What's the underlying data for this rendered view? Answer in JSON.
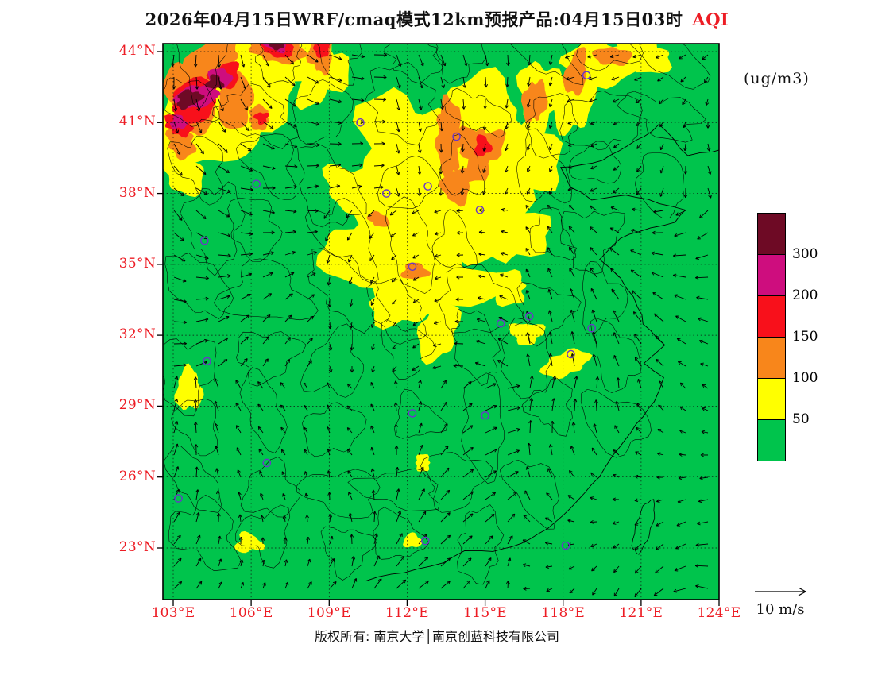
{
  "title": {
    "main": "2026年04月15日WRF/cmaq模式12km预报产品:04月15日03时",
    "variable": "AQI"
  },
  "units_label": "(ug/m3)",
  "footer": "版权所有: 南京大学│南京创蓝科技有限公司",
  "wind_legend": {
    "label": "10 m/s",
    "speed_ms": 10
  },
  "colors": {
    "label_red": "#ed1c24",
    "map_green": "#00c44c",
    "station_purple": "#6a35c9",
    "frame_black": "#000000"
  },
  "chart_data": {
    "type": "heatmap",
    "title": "2026年04月15日WRF/cmaq模式12km预报产品:04月15日03时 AQI",
    "variable": "AQI",
    "units": "ug/m3",
    "model": "WRF/cmaq 12km",
    "valid_time": "04月15日03时",
    "lon_range": [
      103,
      124
    ],
    "lat_range": [
      23,
      44
    ],
    "lon_tick_values": [
      103,
      106,
      109,
      112,
      115,
      118,
      121,
      124
    ],
    "lon_tick_labels": [
      "103°E",
      "106°E",
      "109°E",
      "112°E",
      "115°E",
      "118°E",
      "121°E",
      "124°E"
    ],
    "lat_tick_values": [
      44,
      41,
      38,
      35,
      32,
      29,
      26,
      23
    ],
    "lat_tick_labels": [
      "44°N",
      "41°N",
      "38°N",
      "35°N",
      "32°N",
      "29°N",
      "26°N",
      "23°N"
    ],
    "colorbar": {
      "segments_top_to_bottom": [
        "#6e0a25",
        "#ce0d7e",
        "#f8101b",
        "#f8861b",
        "#ffff00",
        "#00c44c"
      ],
      "boundary_labels_top_to_bottom": [
        "300",
        "200",
        "150",
        "100",
        "50"
      ],
      "background_level": "0-50 (green)"
    },
    "level_colors": {
      "1": "#ffff00",
      "2": "#f8861b",
      "3": "#f8101b",
      "4": "#ce0d7e",
      "5": "#6e0a25"
    },
    "aqi_regions": [
      [
        105.3,
        42.3,
        2.6,
        1.9,
        -25,
        1
      ],
      [
        104.2,
        40.6,
        1.9,
        1.5,
        0,
        1
      ],
      [
        107.0,
        44.0,
        1.7,
        1.0,
        0,
        1
      ],
      [
        108.7,
        43.2,
        0.9,
        1.5,
        10,
        1
      ],
      [
        103.4,
        38.9,
        0.8,
        0.9,
        0,
        1
      ],
      [
        112.0,
        39.9,
        2.0,
        2.3,
        0,
        1
      ],
      [
        114.6,
        40.9,
        1.7,
        1.8,
        -20,
        1
      ],
      [
        115.0,
        38.6,
        2.0,
        1.9,
        0,
        1
      ],
      [
        112.5,
        36.9,
        2.3,
        1.9,
        0,
        1
      ],
      [
        110.6,
        35.5,
        1.9,
        1.4,
        15,
        1
      ],
      [
        109.9,
        38.3,
        1.1,
        0.9,
        0,
        1
      ],
      [
        113.0,
        34.3,
        2.3,
        1.4,
        0,
        1
      ],
      [
        115.5,
        36.2,
        1.6,
        1.4,
        0,
        1
      ],
      [
        111.8,
        33.4,
        1.3,
        1.0,
        0,
        1
      ],
      [
        113.2,
        32.2,
        0.8,
        1.2,
        10,
        1
      ],
      [
        115.9,
        34.0,
        0.8,
        0.6,
        0,
        1
      ],
      [
        116.4,
        39.6,
        1.3,
        1.9,
        0,
        1
      ],
      [
        117.1,
        42.2,
        0.8,
        1.4,
        0,
        1
      ],
      [
        118.4,
        42.0,
        0.7,
        1.6,
        0,
        1
      ],
      [
        119.4,
        43.5,
        1.4,
        0.9,
        -15,
        1
      ],
      [
        121.1,
        43.9,
        1.1,
        0.7,
        0,
        1
      ],
      [
        116.6,
        32.1,
        0.65,
        0.45,
        0,
        1
      ],
      [
        118.1,
        30.8,
        0.85,
        0.55,
        -10,
        1
      ],
      [
        103.6,
        29.7,
        0.5,
        0.9,
        0,
        1
      ],
      [
        112.6,
        26.6,
        0.35,
        0.3,
        0,
        1
      ],
      [
        105.9,
        23.2,
        0.5,
        0.4,
        0,
        1
      ],
      [
        112.2,
        23.3,
        0.35,
        0.3,
        0,
        1
      ],
      [
        104.3,
        43.4,
        1.5,
        0.8,
        -28,
        2
      ],
      [
        103.6,
        42.0,
        0.9,
        1.3,
        -15,
        2
      ],
      [
        105.4,
        41.9,
        0.7,
        1.1,
        -20,
        2
      ],
      [
        106.3,
        41.2,
        0.45,
        0.45,
        0,
        2
      ],
      [
        107.0,
        44.1,
        1.0,
        0.6,
        0,
        2
      ],
      [
        108.7,
        43.9,
        0.45,
        0.8,
        8,
        2
      ],
      [
        113.6,
        40.4,
        0.55,
        1.4,
        -8,
        2
      ],
      [
        114.8,
        39.8,
        0.8,
        1.1,
        10,
        2
      ],
      [
        113.9,
        38.3,
        0.55,
        0.75,
        0,
        2
      ],
      [
        116.9,
        41.9,
        0.4,
        1.0,
        0,
        2
      ],
      [
        118.5,
        43.1,
        0.4,
        1.0,
        12,
        2
      ],
      [
        119.9,
        43.8,
        0.6,
        0.45,
        0,
        2
      ],
      [
        112.3,
        34.7,
        0.5,
        0.35,
        0,
        2
      ],
      [
        110.9,
        36.9,
        0.4,
        0.3,
        0,
        2
      ],
      [
        103.3,
        40.2,
        0.6,
        0.6,
        0,
        2
      ],
      [
        103.8,
        41.9,
        1.1,
        0.75,
        -22,
        3
      ],
      [
        105.0,
        43.0,
        0.6,
        0.5,
        -20,
        3
      ],
      [
        103.2,
        40.9,
        0.5,
        0.45,
        0,
        3
      ],
      [
        107.0,
        44.2,
        0.6,
        0.45,
        0,
        3
      ],
      [
        108.7,
        44.2,
        0.35,
        0.4,
        0,
        3
      ],
      [
        114.9,
        40.0,
        0.3,
        0.45,
        0,
        3
      ],
      [
        106.4,
        41.2,
        0.25,
        0.25,
        0,
        3
      ],
      [
        103.9,
        42.1,
        0.8,
        0.5,
        -22,
        4
      ],
      [
        104.8,
        42.9,
        0.45,
        0.4,
        -20,
        4
      ],
      [
        107.0,
        44.3,
        0.4,
        0.3,
        0,
        4
      ],
      [
        103.2,
        41.0,
        0.3,
        0.3,
        0,
        4
      ],
      [
        103.6,
        42.0,
        0.5,
        0.35,
        -20,
        5
      ],
      [
        104.6,
        42.7,
        0.3,
        0.3,
        0,
        5
      ],
      [
        107.0,
        44.4,
        0.35,
        0.28,
        0,
        5
      ]
    ],
    "stations": [
      [
        118.9,
        43.0
      ],
      [
        113.9,
        40.4
      ],
      [
        110.2,
        41.0
      ],
      [
        106.2,
        38.4
      ],
      [
        111.2,
        38.0
      ],
      [
        112.8,
        38.3
      ],
      [
        114.8,
        37.3
      ],
      [
        104.2,
        36.0
      ],
      [
        112.2,
        34.9
      ],
      [
        115.6,
        32.5
      ],
      [
        116.7,
        32.8
      ],
      [
        118.3,
        31.2
      ],
      [
        119.1,
        32.3
      ],
      [
        104.3,
        30.9
      ],
      [
        112.2,
        28.7
      ],
      [
        115.0,
        28.6
      ],
      [
        103.2,
        25.1
      ],
      [
        112.7,
        23.3
      ],
      [
        118.1,
        23.1
      ],
      [
        106.6,
        26.6
      ]
    ],
    "coastline": [
      [
        124.2,
        39.9
      ],
      [
        122.8,
        39.6
      ],
      [
        121.7,
        40.9
      ],
      [
        120.8,
        40.2
      ],
      [
        119.5,
        39.4
      ],
      [
        117.9,
        39.1
      ],
      [
        118.3,
        38.3
      ],
      [
        119.1,
        37.7
      ],
      [
        120.4,
        37.9
      ],
      [
        121.7,
        37.6
      ],
      [
        122.7,
        37.3
      ],
      [
        122.3,
        36.8
      ],
      [
        120.9,
        36.4
      ],
      [
        120.2,
        36.1
      ],
      [
        119.4,
        35.2
      ],
      [
        120.2,
        34.4
      ],
      [
        120.9,
        33.2
      ],
      [
        121.1,
        32.5
      ],
      [
        121.9,
        31.6
      ],
      [
        121.1,
        30.8
      ],
      [
        121.9,
        30.2
      ],
      [
        121.5,
        29.2
      ],
      [
        120.6,
        27.9
      ],
      [
        119.9,
        26.9
      ],
      [
        119.4,
        26.0
      ],
      [
        118.3,
        24.7
      ],
      [
        117.4,
        23.8
      ],
      [
        116.4,
        23.2
      ],
      [
        115.3,
        22.9
      ],
      [
        114.2,
        22.9
      ],
      [
        113.4,
        22.4
      ],
      [
        112.4,
        22.1
      ],
      [
        111.4,
        21.9
      ],
      [
        110.4,
        21.6
      ]
    ],
    "taiwan": [
      121.1,
      23.9,
      0.35,
      1.0,
      15
    ]
  }
}
